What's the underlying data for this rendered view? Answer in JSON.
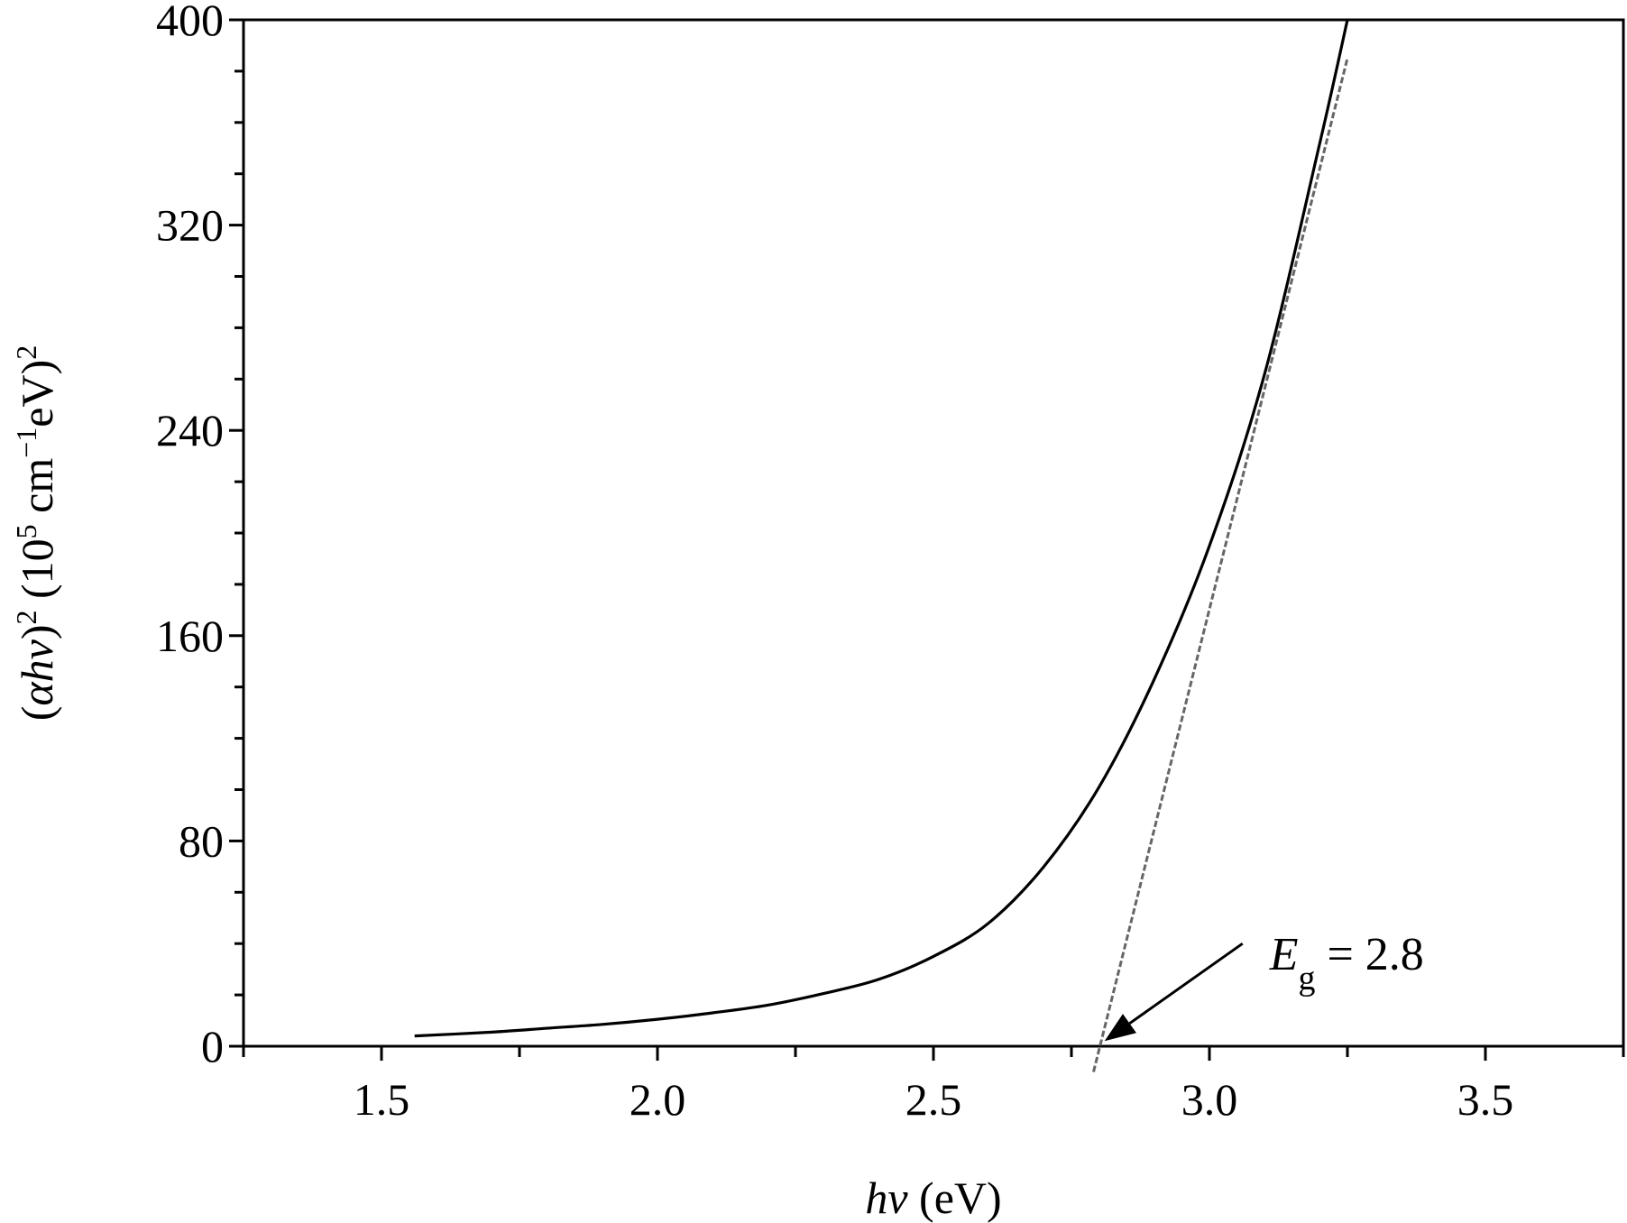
{
  "chart_data": {
    "type": "line",
    "xlim": [
      1.25,
      3.75
    ],
    "ylim": [
      0,
      400
    ],
    "x_ticks": [
      1.5,
      2.0,
      2.5,
      3.0,
      3.5
    ],
    "x_tick_labels": [
      "1.5",
      "2.0",
      "2.5",
      "3.0",
      "3.5"
    ],
    "y_ticks": [
      0,
      80,
      160,
      240,
      320,
      400
    ],
    "y_tick_labels": [
      "0",
      "80",
      "160",
      "240",
      "320",
      "400"
    ],
    "x_minor_step": 0.25,
    "y_minor_step": 20,
    "xlabel": {
      "italic": "hv",
      "rest": " (eV)"
    },
    "ylabel": {
      "open": "(",
      "italic": "αhv",
      "close": ")",
      "sup1": "2",
      "mid1": " (10",
      "sup2": "5",
      "mid2": " cm",
      "sup3": "−1",
      "mid3": "eV)",
      "sup4": "2"
    },
    "grid": false,
    "legend": "none",
    "series": [
      {
        "style": "solid",
        "color": "#000000",
        "x": [
          1.56,
          1.7,
          1.8,
          1.9,
          2.0,
          2.1,
          2.2,
          2.3,
          2.4,
          2.5,
          2.6,
          2.7,
          2.8,
          2.9,
          3.0,
          3.1,
          3.2,
          3.25
        ],
        "y": [
          4,
          5.5,
          7,
          8.5,
          10.5,
          13,
          16,
          20.5,
          26,
          35,
          48,
          70,
          101,
          143,
          195,
          262,
          352,
          400
        ]
      },
      {
        "style": "dashed",
        "color": "#666666",
        "x": [
          2.79,
          3.25
        ],
        "y": [
          -10,
          385
        ]
      }
    ],
    "annotations": [
      {
        "label_main": "E",
        "label_sub": "g",
        "label_rest": " = 2.8",
        "text_at": [
          3.06,
          32
        ],
        "arrow_from": [
          3.06,
          40
        ],
        "arrow_to": [
          2.81,
          2
        ]
      }
    ]
  }
}
